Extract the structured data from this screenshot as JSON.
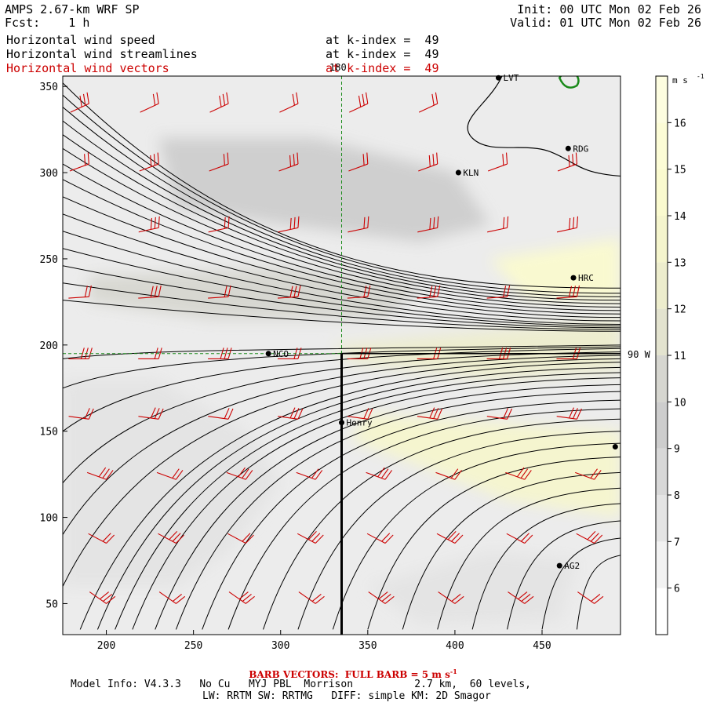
{
  "header": {
    "model_title": "AMPS 2.67-km WRF SP",
    "forecast_line": "Fcst:    1 h",
    "init_line": "Init: 00 UTC Mon 02 Feb 26",
    "valid_line": "Valid: 01 UTC Mon 02 Feb 26",
    "fields": [
      {
        "name": "Horizontal wind speed",
        "level": "at k-index =  49",
        "color": "#000000"
      },
      {
        "name": "Horizontal wind streamlines",
        "level": "at k-index =  49",
        "color": "#000000"
      },
      {
        "name": "Horizontal wind vectors",
        "level": "at k-index =  49",
        "color": "#cc0000"
      }
    ]
  },
  "map_labels": {
    "meridian_180": "180",
    "meridian_90w": "90 W"
  },
  "stations": [
    {
      "name": "LVT",
      "x": 425,
      "y": 355
    },
    {
      "name": "RDG",
      "x": 465,
      "y": 314
    },
    {
      "name": "KLN",
      "x": 402,
      "y": 300
    },
    {
      "name": "HRC",
      "x": 468,
      "y": 239
    },
    {
      "name": "NCO",
      "x": 293,
      "y": 195
    },
    {
      "name": "Henry",
      "x": 335,
      "y": 155
    },
    {
      "name": "AG2",
      "x": 460,
      "y": 72
    },
    {
      "name": "",
      "x": 492,
      "y": 141
    }
  ],
  "chart_data": {
    "type": "heatmap",
    "title": "Horizontal wind speed",
    "xlim": [
      175,
      495
    ],
    "ylim": [
      32,
      356
    ],
    "x_ticks": [
      200,
      250,
      300,
      350,
      400,
      450
    ],
    "y_ticks": [
      50,
      100,
      150,
      200,
      250,
      300,
      350
    ],
    "reference_lines": {
      "x": 335,
      "y": 195
    },
    "colorbar": {
      "unit": "m s",
      "unit_exponent": "-1",
      "ticks": [
        6,
        7,
        8,
        9,
        10,
        11,
        12,
        13,
        14,
        15,
        16
      ],
      "min": 5,
      "max": 17,
      "bands": [
        {
          "from": 5,
          "to": 6,
          "color": "#ffffff"
        },
        {
          "from": 6,
          "to": 7,
          "color": "#f2f2f2"
        },
        {
          "from": 7,
          "to": 8,
          "color": "#e4e4e4"
        },
        {
          "from": 8,
          "to": 9,
          "color": "#d8d8d8"
        },
        {
          "from": 9,
          "to": 10,
          "color": "#cdcdcd"
        },
        {
          "from": 10,
          "to": 11,
          "color": "#d6d6d0"
        },
        {
          "from": 11,
          "to": 12,
          "color": "#e3e3cf"
        },
        {
          "from": 12,
          "to": 13,
          "color": "#ededcd"
        },
        {
          "from": 13,
          "to": 14,
          "color": "#f5f5cd"
        },
        {
          "from": 14,
          "to": 15,
          "color": "#fafacf"
        },
        {
          "from": 15,
          "to": 16,
          "color": "#fcfcd6"
        },
        {
          "from": 16,
          "to": 17,
          "color": "#fdfde0"
        }
      ]
    },
    "regions": [
      {
        "speed": 7.5,
        "points": [
          [
            175,
            180
          ],
          [
            230,
            180
          ],
          [
            280,
            150
          ],
          [
            300,
            120
          ],
          [
            270,
            80
          ],
          [
            240,
            60
          ],
          [
            175,
            60
          ]
        ]
      },
      {
        "speed": 9.5,
        "points": [
          [
            230,
            320
          ],
          [
            320,
            320
          ],
          [
            400,
            300
          ],
          [
            420,
            270
          ],
          [
            380,
            260
          ],
          [
            300,
            270
          ],
          [
            240,
            280
          ]
        ]
      },
      {
        "speed": 10.5,
        "points": [
          [
            190,
            240
          ],
          [
            300,
            245
          ],
          [
            380,
            235
          ],
          [
            360,
            215
          ],
          [
            260,
            215
          ],
          [
            190,
            225
          ]
        ]
      },
      {
        "speed": 12.5,
        "points": [
          [
            330,
            200
          ],
          [
            495,
            215
          ],
          [
            495,
            185
          ],
          [
            420,
            180
          ],
          [
            340,
            190
          ]
        ]
      },
      {
        "speed": 13.5,
        "points": [
          [
            350,
            160
          ],
          [
            495,
            150
          ],
          [
            495,
            100
          ],
          [
            430,
            110
          ],
          [
            380,
            130
          ],
          [
            340,
            145
          ]
        ]
      },
      {
        "speed": 14.5,
        "points": [
          [
            420,
            250
          ],
          [
            495,
            262
          ],
          [
            495,
            225
          ],
          [
            440,
            228
          ]
        ]
      },
      {
        "speed": 7.0,
        "points": [
          [
            350,
            60
          ],
          [
            420,
            80
          ],
          [
            470,
            75
          ],
          [
            460,
            40
          ],
          [
            380,
            38
          ]
        ]
      }
    ],
    "streamline_centers": [
      {
        "y_left": 352,
        "y_right": 233,
        "sag": 0.35
      },
      {
        "y_left": 345,
        "y_right": 230,
        "sag": 0.3
      },
      {
        "y_left": 338,
        "y_right": 228,
        "sag": 0.28
      },
      {
        "y_left": 330,
        "y_right": 226,
        "sag": 0.25
      },
      {
        "y_left": 322,
        "y_right": 224,
        "sag": 0.22
      },
      {
        "y_left": 314,
        "y_right": 222,
        "sag": 0.2
      },
      {
        "y_left": 305,
        "y_right": 220,
        "sag": 0.18
      },
      {
        "y_left": 296,
        "y_right": 218,
        "sag": 0.15
      },
      {
        "y_left": 286,
        "y_right": 216,
        "sag": 0.12
      },
      {
        "y_left": 276,
        "y_right": 214,
        "sag": 0.1
      },
      {
        "y_left": 266,
        "y_right": 212,
        "sag": 0.08
      },
      {
        "y_left": 256,
        "y_right": 211,
        "sag": 0.06
      },
      {
        "y_left": 246,
        "y_right": 210,
        "sag": 0.04
      },
      {
        "y_left": 236,
        "y_right": 209,
        "sag": 0.03
      },
      {
        "y_left": 226,
        "y_right": 208,
        "sag": 0.02
      }
    ],
    "streamline_south": [
      {
        "x0": 185,
        "y0": 35,
        "y_right": 190
      },
      {
        "x0": 195,
        "y0": 35,
        "y_right": 187
      },
      {
        "x0": 205,
        "y0": 35,
        "y_right": 184
      },
      {
        "x0": 215,
        "y0": 35,
        "y_right": 181
      },
      {
        "x0": 228,
        "y0": 35,
        "y_right": 177
      },
      {
        "x0": 240,
        "y0": 35,
        "y_right": 173
      },
      {
        "x0": 255,
        "y0": 35,
        "y_right": 168
      },
      {
        "x0": 270,
        "y0": 35,
        "y_right": 163
      },
      {
        "x0": 290,
        "y0": 35,
        "y_right": 157
      },
      {
        "x0": 310,
        "y0": 35,
        "y_right": 150
      },
      {
        "x0": 330,
        "y0": 35,
        "y_right": 143
      },
      {
        "x0": 350,
        "y0": 35,
        "y_right": 135
      },
      {
        "x0": 370,
        "y0": 35,
        "y_right": 126
      },
      {
        "x0": 390,
        "y0": 35,
        "y_right": 117
      },
      {
        "x0": 410,
        "y0": 35,
        "y_right": 108
      },
      {
        "x0": 430,
        "y0": 35,
        "y_right": 98
      },
      {
        "x0": 450,
        "y0": 35,
        "y_right": 88
      },
      {
        "x0": 470,
        "y0": 35,
        "y_right": 78
      },
      {
        "x0": 175,
        "y0": 60,
        "y_right": 192
      },
      {
        "x0": 175,
        "y0": 90,
        "y_right": 194
      },
      {
        "x0": 175,
        "y0": 120,
        "y_right": 196
      },
      {
        "x0": 175,
        "y0": 150,
        "y_right": 198
      },
      {
        "x0": 175,
        "y0": 175,
        "y_right": 199
      },
      {
        "x0": 175,
        "y0": 192,
        "y_right": 200
      }
    ],
    "barb_rows": [
      {
        "y": 340,
        "xs": [
          190,
          230,
          270,
          310,
          350,
          390
        ],
        "dir": -25
      },
      {
        "y": 305,
        "xs": [
          190,
          230,
          270,
          310,
          350,
          390,
          430,
          470
        ],
        "dir": -20
      },
      {
        "y": 268,
        "xs": [
          230,
          270,
          310,
          350,
          390,
          430,
          470
        ],
        "dir": -12
      },
      {
        "y": 228,
        "xs": [
          190,
          230,
          270,
          310,
          350,
          390,
          430,
          470
        ],
        "dir": -4
      },
      {
        "y": 192,
        "xs": [
          190,
          230,
          270,
          310,
          350,
          390,
          430,
          470
        ],
        "dir": 0
      },
      {
        "y": 157,
        "xs": [
          190,
          230,
          270,
          310,
          350,
          390,
          430,
          470
        ],
        "dir": 8
      },
      {
        "y": 122,
        "xs": [
          200,
          240,
          280,
          320,
          360,
          400,
          440,
          480
        ],
        "dir": 20
      },
      {
        "y": 85,
        "xs": [
          200,
          240,
          280,
          320,
          360,
          400,
          440,
          480
        ],
        "dir": 28
      },
      {
        "y": 50,
        "xs": [
          200,
          240,
          280,
          320,
          360,
          400,
          440,
          480
        ],
        "dir": 35
      }
    ]
  },
  "footer": {
    "barb_note_main": "BARB VECTORS:  FULL BARB = 5 m s",
    "barb_note_exp": "-1",
    "model_info_1": "Model Info: V4.3.3   No Cu   MYJ PBL  Morrison          2.7 km,  60 levels,",
    "model_info_2": "LW: RRTM SW: RRTMG   DIFF: simple KM: 2D Smagor"
  }
}
